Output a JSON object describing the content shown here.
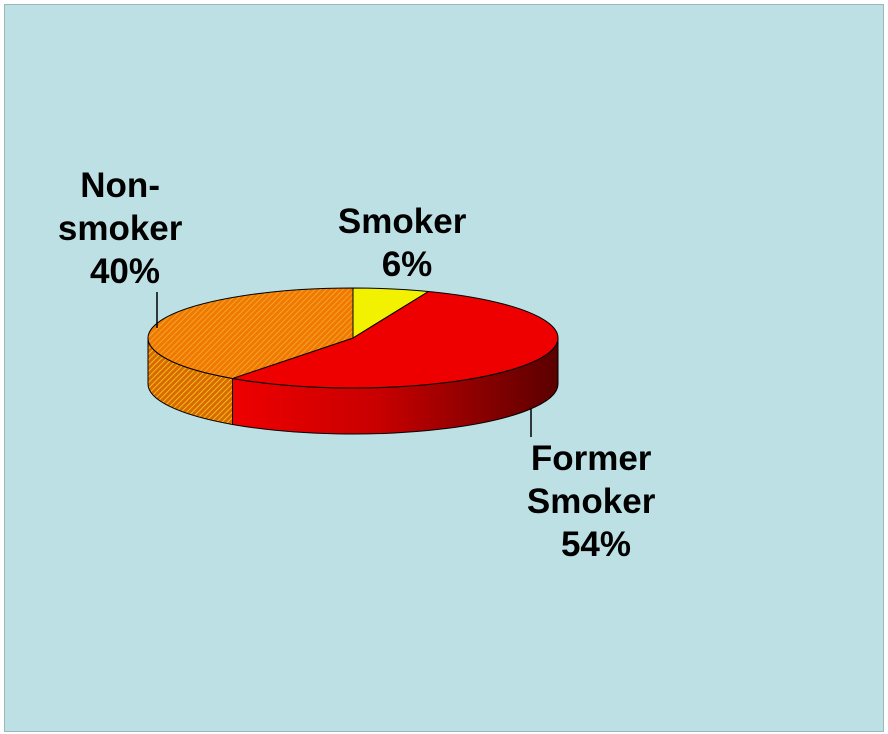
{
  "chart_data": {
    "type": "pie",
    "style": "3d",
    "title": "",
    "slices": [
      {
        "name": "Smoker",
        "label_lines": [
          "Smoker",
          "6%"
        ],
        "value": 6,
        "color": "#f2f200"
      },
      {
        "name": "Former Smoker",
        "label_lines": [
          "Former",
          "Smoker",
          "54%"
        ],
        "value": 54,
        "color": "#ee0000"
      },
      {
        "name": "Non-smoker",
        "label_lines": [
          "Non-",
          "smoker",
          "40%"
        ],
        "value": 40,
        "color": "#f07a00"
      }
    ],
    "background_color": "#bce0e3",
    "legend": "none"
  }
}
